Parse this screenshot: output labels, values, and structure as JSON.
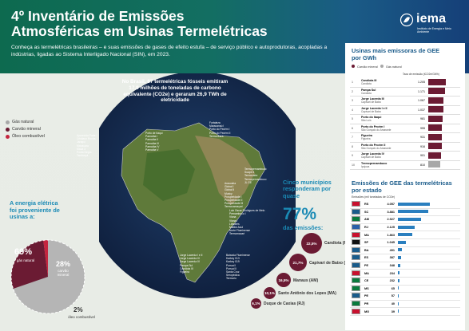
{
  "header": {
    "title": "4º Inventário de Emissões Atmosféricas em Usinas Termelétricas",
    "subtitle": "Conheça as termelétricas brasileiras – e suas emissões de gases de efeito estufa – de serviço público e autoprodutoras, acopladas a indústrias, ligadas ao Sistema Interligado Nacional (SIN), em 2023.",
    "logo_name": "iema",
    "logo_tag": "Instituto de Energia e Meio Ambiente"
  },
  "colors": {
    "gas": "#a8a8a8",
    "carvao": "#6b1b33",
    "oleo": "#c5253f",
    "accent": "#1a8ab5",
    "bar": "#2a7fbf"
  },
  "legend": [
    {
      "label": "Gás natural",
      "color": "#a8a8a8"
    },
    {
      "label": "Carvão mineral",
      "color": "#6b1b33"
    },
    {
      "label": "Óleo combustível",
      "color": "#c5253f"
    }
  ],
  "map_title": "No Brasil, 67 termelétricas fósseis emitiram 17,9 milhões de toneladas de carbono equivalente (CO2e) e geraram 26,9 TWh de eletricidade",
  "energy": {
    "heading": "A energia elétrica foi proveniente de usinas a:",
    "slices": [
      {
        "label": "gás natural",
        "value": 69,
        "text": "69%"
      },
      {
        "label": "carvão mineral",
        "value": 28,
        "text": "28%"
      },
      {
        "label": "óleo combustível",
        "value": 2,
        "text": "2%"
      }
    ]
  },
  "plants_groups": [
    [
      "Aparecida Parte I",
      "Cristiano Rocha",
      "Jaraqui",
      "Manauara",
      "Mauá 3",
      "Ponta Negra",
      "Tambaqui"
    ],
    [
      "Fortaleza",
      "Maracanaú I",
      "Porto do Pecém I",
      "Porto do Pecém II",
      "Termoceará"
    ],
    [
      "Porto de Itaqui",
      "Parnaíba I",
      "Parnaíba II",
      "Parnaíba III",
      "Parnaíba IV",
      "Parnaíba V"
    ],
    [
      "Termopernambuco",
      "Suape II",
      "Termocabo",
      "Termopernambuco",
      "JL GE"
    ],
    [
      "Araucária",
      "Global I",
      "Global II",
      "Muricy",
      "Prosperidade I",
      "Prosperidade II",
      "Prosperidade III",
      "Termocamaçari"
    ],
    [
      "Luiz Oscar Rodrigues de Melo",
      "Pernambuco I",
      "Viana",
      "Viana I",
      "Linhares",
      "Marlim Azul",
      "Norte Fluminense",
      "Termomacaé"
    ],
    [
      "Baixada Fluminense",
      "Karkey 013",
      "Karkey 019",
      "Porsud I",
      "Porsud II",
      "Santa Cruz",
      "Seropédica",
      "Termorio"
    ],
    [
      "Jorge Lacerda I e II",
      "Jorge Lacerda III",
      "Jorge Lacerda IV",
      "Pampa Sul",
      "Candiota III",
      "Figueira"
    ]
  ],
  "cinco": {
    "heading": "Cinco municípios responderam por quase",
    "big": "77%",
    "tail": "das emissões:",
    "bubbles": [
      {
        "pct": "22,5%",
        "name": "Candiota (RS)"
      },
      {
        "pct": "21,7%",
        "name": "Capivari de Baixo (SC)"
      },
      {
        "pct": "16,5%",
        "name": "Manaus (AM)"
      },
      {
        "pct": "10,1%",
        "name": "Santo Antônio dos Lopes (MA)"
      },
      {
        "pct": "6,1%",
        "name": "Duque de Caxias (RJ)"
      }
    ]
  },
  "table1": {
    "title": "Usinas mais emissoras de GEE por GWh",
    "legend": [
      {
        "label": "Carvão mineral",
        "color": "#6b1b33"
      },
      {
        "label": "Gás natural",
        "color": "#a8a8a8"
      }
    ],
    "col": "Taxa de emissão (tCO2e/GWh)",
    "rows": [
      {
        "n": "1",
        "name": "Candiota III",
        "sub": "Candiota",
        "v": "1.205",
        "num": 1205
      },
      {
        "n": "2",
        "name": "Pampa Sul",
        "sub": "Candiota",
        "v": "1.171",
        "num": 1171
      },
      {
        "n": "3",
        "name": "Jorge Lacerda III",
        "sub": "Capivari de Baixo",
        "v": "1.067",
        "num": 1067
      },
      {
        "n": "4",
        "name": "Jorge Lacerda I e II",
        "sub": "Capivari de Baixo",
        "v": "1.037",
        "num": 1037
      },
      {
        "n": "5",
        "name": "Porto do Itaqui",
        "sub": "São Luís",
        "v": "981",
        "num": 981
      },
      {
        "n": "6",
        "name": "Porto do Pecém I",
        "sub": "São Gonçalo do Amarante",
        "v": "955",
        "num": 955
      },
      {
        "n": "7",
        "name": "Figueira",
        "sub": "Figueira",
        "v": "931",
        "num": 931
      },
      {
        "n": "8",
        "name": "Porto do Pecém II",
        "sub": "São Gonçalo do Amarante",
        "v": "916",
        "num": 916
      },
      {
        "n": "9",
        "name": "Jorge Lacerda IV",
        "sub": "Capivari de Baixo",
        "v": "901",
        "num": 901
      },
      {
        "n": "10",
        "name": "Termopernambuco",
        "sub": "Ipojuca",
        "v": "810",
        "num": 810
      }
    ]
  },
  "table2": {
    "title": "Emissões de GEE das termelétricas por estado",
    "col": "Emissões (mil toneladas de CO2e)",
    "rows": [
      {
        "uf": "RS",
        "v": "4.057",
        "num": 4057
      },
      {
        "uf": "SC",
        "v": "3.881",
        "num": 3881
      },
      {
        "uf": "AM",
        "v": "2.927",
        "num": 2927
      },
      {
        "uf": "RJ",
        "v": "2.125",
        "num": 2125
      },
      {
        "uf": "MA",
        "v": "1.863",
        "num": 1863
      },
      {
        "uf": "SP",
        "v": "1.045",
        "num": 1045
      },
      {
        "uf": "BA",
        "v": "491",
        "num": 491
      },
      {
        "uf": "ES",
        "v": "387",
        "num": 387
      },
      {
        "uf": "PE",
        "v": "348",
        "num": 348
      },
      {
        "uf": "MA",
        "v": "234",
        "num": 234
      },
      {
        "uf": "CE",
        "v": "232",
        "num": 232
      },
      {
        "uf": "MS",
        "v": "65",
        "num": 65
      },
      {
        "uf": "PE",
        "v": "57",
        "num": 57
      },
      {
        "uf": "PR",
        "v": "40",
        "num": 40
      },
      {
        "uf": "MG",
        "v": "39",
        "num": 39
      }
    ]
  }
}
